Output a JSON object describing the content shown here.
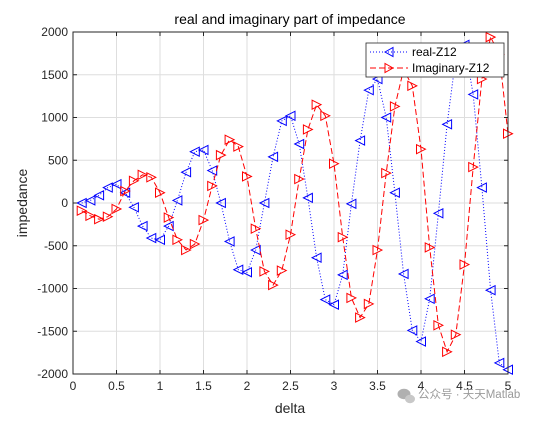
{
  "chart_data": {
    "type": "line",
    "title": "real and imaginary part of impedance",
    "xlabel": "delta",
    "ylabel": "impedance",
    "xlim": [
      0,
      5
    ],
    "ylim": [
      -2000,
      2000
    ],
    "x_ticks": [
      0,
      0.5,
      1,
      1.5,
      2,
      2.5,
      3,
      3.5,
      4,
      4.5,
      5
    ],
    "x_tick_labels": [
      "0",
      "0.5",
      "1",
      "1.5",
      "2",
      "2.5",
      "3",
      "3.5",
      "4",
      "4.5",
      "5"
    ],
    "y_ticks": [
      -2000,
      -1500,
      -1000,
      -500,
      0,
      500,
      1000,
      1500,
      2000
    ],
    "y_tick_labels": [
      "-2000",
      "-1500",
      "-1000",
      "-500",
      "0",
      "500",
      "1000",
      "1500",
      "2000"
    ],
    "grid": true,
    "legend_position": "top-right",
    "x": [
      0.1,
      0.2,
      0.3,
      0.4,
      0.5,
      0.6,
      0.7,
      0.8,
      0.9,
      1.0,
      1.1,
      1.2,
      1.3,
      1.4,
      1.5,
      1.6,
      1.7,
      1.8,
      1.9,
      2.0,
      2.1,
      2.2,
      2.3,
      2.4,
      2.5,
      2.6,
      2.7,
      2.8,
      2.9,
      3.0,
      3.1,
      3.2,
      3.3,
      3.4,
      3.5,
      3.6,
      3.7,
      3.8,
      3.9,
      4.0,
      4.1,
      4.2,
      4.3,
      4.4,
      4.5,
      4.6,
      4.7,
      4.8,
      4.9,
      5.0
    ],
    "series": [
      {
        "name": "real-Z12",
        "color": "#0000ff",
        "line_style": "dotted",
        "marker": "triangle-left",
        "values": [
          0,
          30,
          90,
          180,
          220,
          120,
          -50,
          -270,
          -410,
          -430,
          -270,
          30,
          360,
          600,
          620,
          380,
          0,
          -450,
          -780,
          -810,
          -550,
          0,
          540,
          960,
          1020,
          690,
          60,
          -640,
          -1130,
          -1190,
          -840,
          -10,
          730,
          1320,
          1450,
          1000,
          120,
          -830,
          -1490,
          -1620,
          -1120,
          -120,
          920,
          1700,
          1850,
          1270,
          180,
          -1020,
          -1870,
          -1950
        ]
      },
      {
        "name": "Imaginary-Z12",
        "color": "#ff0000",
        "line_style": "dashed",
        "marker": "triangle-right",
        "values": [
          -90,
          -150,
          -190,
          -160,
          -70,
          140,
          260,
          330,
          300,
          120,
          -170,
          -430,
          -550,
          -480,
          -200,
          200,
          560,
          740,
          660,
          310,
          -300,
          -800,
          -960,
          -790,
          -370,
          280,
          860,
          1150,
          1020,
          460,
          -400,
          -1110,
          -1340,
          -1180,
          -550,
          350,
          1130,
          1560,
          1370,
          630,
          -520,
          -1430,
          -1740,
          -1540,
          -720,
          420,
          1450,
          1940,
          1740,
          810
        ]
      }
    ]
  },
  "watermark": {
    "text": "公众号 · 天天Matlab",
    "icon": "wechat-icon"
  }
}
